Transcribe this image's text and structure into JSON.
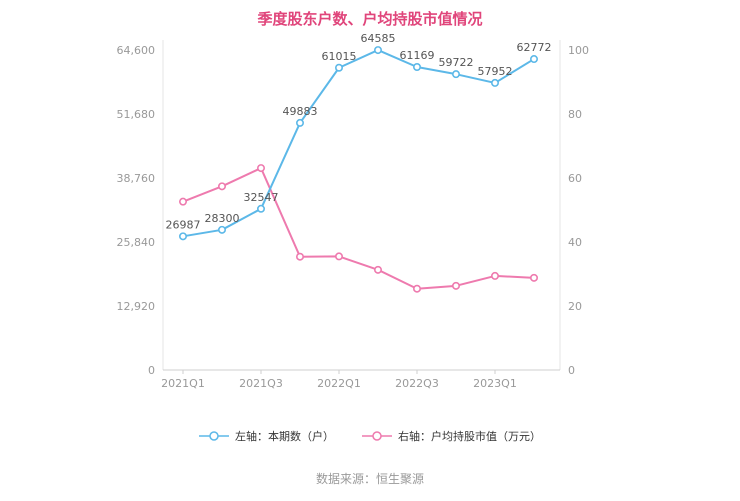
{
  "title": "季度股东户数、户均持股市值情况",
  "source": "数据来源：恒生聚源",
  "colors": {
    "title": "#e0457b",
    "series_left": "#5cb8e8",
    "series_right": "#ee7aae",
    "axis_text": "#999999",
    "data_label": "#555555",
    "axis_line": "#e4e4e4",
    "x_axis_line": "#cfcfcf"
  },
  "legend": [
    {
      "label": "左轴：本期数（户）",
      "color": "#5cb8e8"
    },
    {
      "label": "右轴：户均持股市值（万元）",
      "color": "#ee7aae"
    }
  ],
  "chart_data": {
    "type": "line",
    "title": "季度股东户数、户均持股市值情况",
    "x": [
      "2021Q1",
      "2021Q2",
      "2021Q3",
      "2021Q4",
      "2022Q1",
      "2022Q2",
      "2022Q3",
      "2022Q4",
      "2023Q1",
      "2023Q2"
    ],
    "x_tick_labels": [
      "2021Q1",
      "2021Q3",
      "2022Q1",
      "2022Q3",
      "2023Q1"
    ],
    "series": [
      {
        "name": "左轴：本期数（户）",
        "axis": "left",
        "color": "#5cb8e8",
        "labeled": true,
        "values": [
          26987,
          28300,
          32547,
          49883,
          61015,
          64585,
          61169,
          59722,
          57952,
          62772
        ]
      },
      {
        "name": "右轴：户均持股市值（万元）",
        "axis": "right",
        "color": "#ee7aae",
        "labeled": false,
        "values": [
          52.6,
          57.4,
          63.1,
          35.4,
          35.5,
          31.3,
          25.4,
          26.3,
          29.4,
          28.8
        ]
      }
    ],
    "left_axis": {
      "ticks": [
        0,
        12920,
        25840,
        38760,
        51680,
        64600
      ],
      "min": 0,
      "max": 64600
    },
    "right_axis": {
      "ticks": [
        0,
        20,
        40,
        60,
        80,
        100
      ],
      "min": 0,
      "max": 100
    },
    "grid": false,
    "legend_position": "bottom"
  }
}
